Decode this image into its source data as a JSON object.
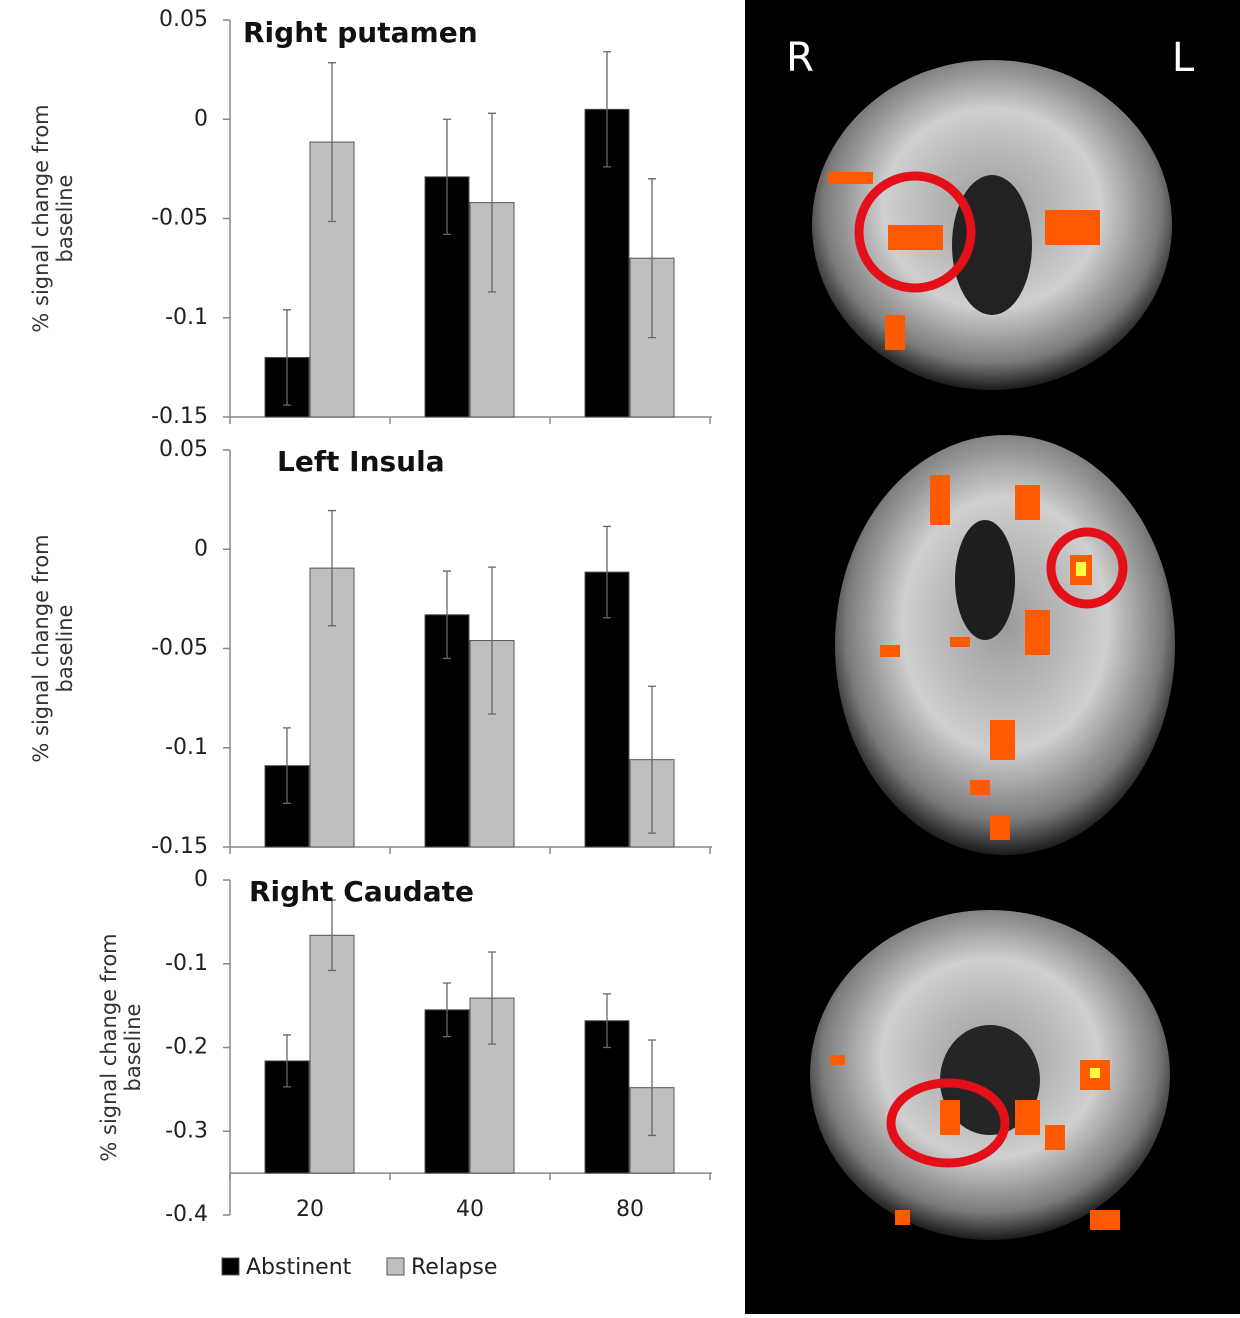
{
  "chart_data": [
    {
      "type": "bar",
      "title": "Right putamen",
      "ylabel": [
        "% signal change from",
        "baseline"
      ],
      "categories": [
        null,
        null,
        null
      ],
      "series": [
        {
          "name": "Abstinent",
          "color": "#000000",
          "values": [
            -0.12,
            -0.029,
            0.005
          ],
          "errors": [
            0.024,
            0.029,
            0.029
          ]
        },
        {
          "name": "Relapse",
          "color": "#bfbfbf",
          "values": [
            -0.0115,
            -0.042,
            -0.07
          ],
          "errors": [
            0.04,
            0.045,
            0.04
          ]
        }
      ],
      "ylim": [
        -0.15,
        0.05
      ],
      "yticks": [
        -0.15,
        -0.1,
        -0.05,
        0,
        0.05
      ],
      "xaxis_crosses": -0.15
    },
    {
      "type": "bar",
      "title": "Left Insula",
      "ylabel": [
        "% signal change from",
        "baseline"
      ],
      "categories": [
        null,
        null,
        null
      ],
      "series": [
        {
          "name": "Abstinent",
          "color": "#000000",
          "values": [
            -0.109,
            -0.033,
            -0.0115
          ],
          "errors": [
            0.019,
            0.022,
            0.023
          ]
        },
        {
          "name": "Relapse",
          "color": "#bfbfbf",
          "values": [
            -0.0095,
            -0.046,
            -0.106
          ],
          "errors": [
            0.029,
            0.037,
            0.037
          ]
        }
      ],
      "ylim": [
        -0.15,
        0.05
      ],
      "yticks": [
        -0.15,
        -0.1,
        -0.05,
        0,
        0.05
      ],
      "xaxis_crosses": -0.15
    },
    {
      "type": "bar",
      "title": "Right Caudate",
      "ylabel": [
        "% signal change from",
        "baseline"
      ],
      "categories": [
        "20",
        "40",
        "80"
      ],
      "series": [
        {
          "name": "Abstinent",
          "color": "#000000",
          "values": [
            -0.216,
            -0.155,
            -0.168
          ],
          "errors": [
            0.031,
            0.032,
            0.032
          ]
        },
        {
          "name": "Relapse",
          "color": "#bfbfbf",
          "values": [
            -0.066,
            -0.141,
            -0.248
          ],
          "errors": [
            0.042,
            0.055,
            0.057
          ]
        }
      ],
      "ylim": [
        -0.4,
        0
      ],
      "yticks": [
        -0.4,
        -0.3,
        -0.2,
        -0.1,
        0
      ],
      "xaxis_crosses": -0.35
    }
  ],
  "brain_labels": {
    "right": "R",
    "left": "L"
  }
}
